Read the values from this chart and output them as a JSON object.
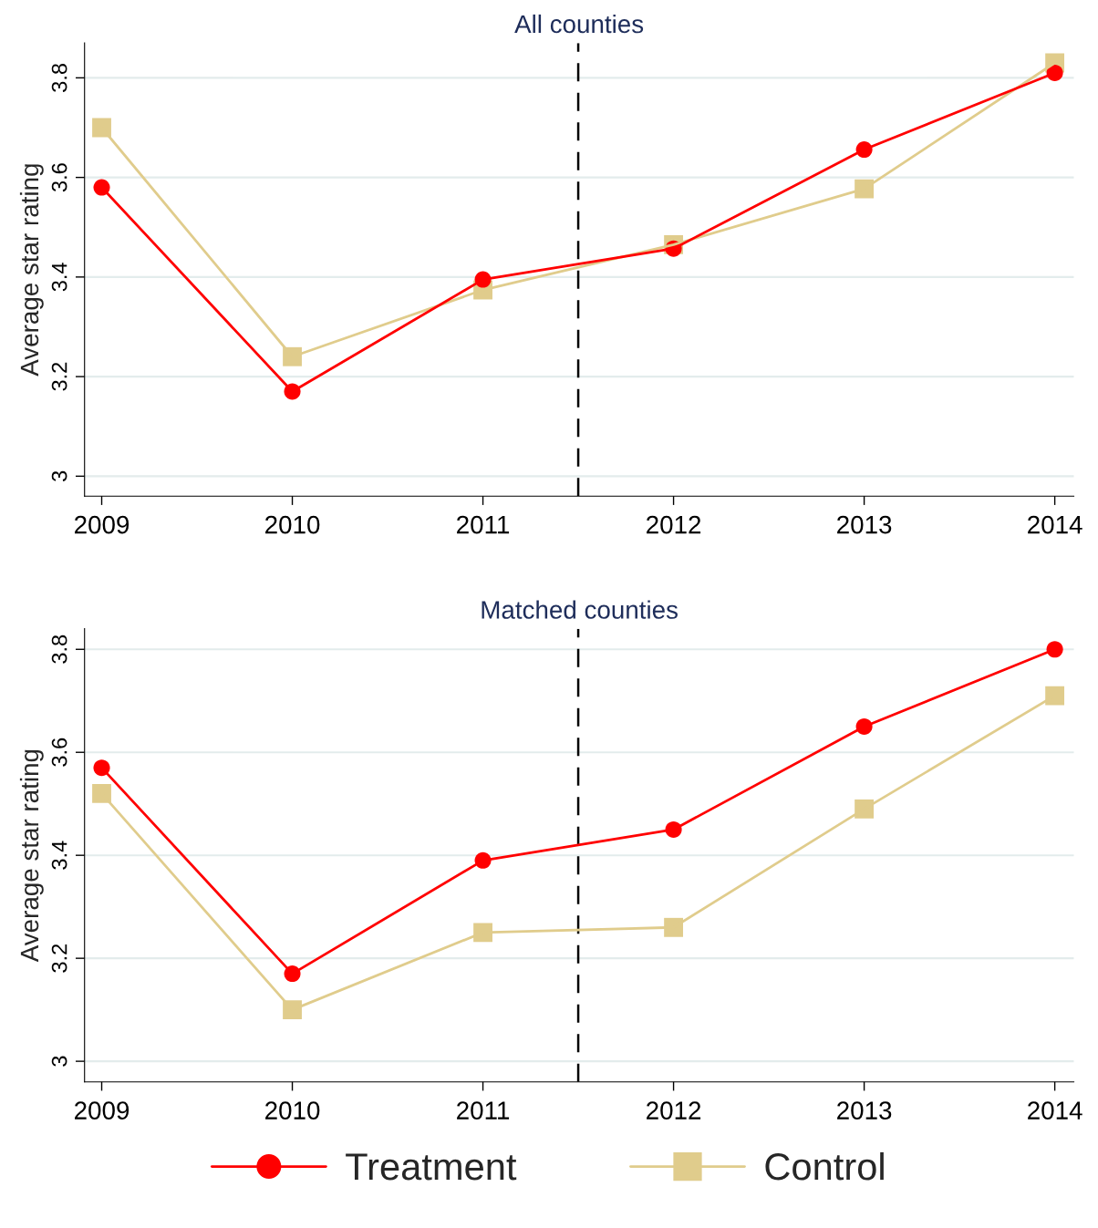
{
  "chart_data": [
    {
      "type": "line",
      "title": "All counties",
      "ylabel": "Average star rating",
      "x": [
        2009,
        2010,
        2011,
        2012,
        2013,
        2014
      ],
      "series": [
        {
          "name": "Treatment",
          "color": "#ff0000",
          "marker": "circle",
          "values": [
            3.58,
            3.17,
            3.395,
            3.457,
            3.656,
            3.81
          ]
        },
        {
          "name": "Control",
          "color": "#e0cc8c",
          "marker": "square",
          "values": [
            3.7,
            3.24,
            3.374,
            3.465,
            3.577,
            3.83
          ]
        }
      ],
      "xlim": [
        2008.91,
        2014.1
      ],
      "xticks": [
        2009,
        2010,
        2011,
        2012,
        2013,
        2014
      ],
      "ylim": [
        2.96,
        3.87
      ],
      "yticks": [
        3,
        3.2,
        3.4,
        3.6,
        3.8
      ],
      "grid": "y",
      "legend": "bottom",
      "ref_lines": [
        {
          "axis": "x",
          "value": 2011.5,
          "color": "#000000",
          "line_style": "dashed"
        }
      ]
    },
    {
      "type": "line",
      "title": "Matched counties",
      "ylabel": "Average star rating",
      "x": [
        2009,
        2010,
        2011,
        2012,
        2013,
        2014
      ],
      "series": [
        {
          "color": "#ff0000",
          "marker": "circle",
          "values": [
            3.57,
            3.17,
            3.39,
            3.45,
            3.65,
            3.8
          ]
        },
        {
          "color": "#e0cc8c",
          "marker": "square",
          "values": [
            3.52,
            3.1,
            3.25,
            3.26,
            3.49,
            3.71
          ]
        }
      ],
      "xlim": [
        2008.91,
        2014.1
      ],
      "xticks": [
        2009,
        2010,
        2011,
        2012,
        2013,
        2014
      ],
      "ylim": [
        2.96,
        3.84
      ],
      "yticks": [
        3,
        3.2,
        3.4,
        3.6,
        3.8
      ],
      "grid": "y",
      "ref_lines": [
        {
          "axis": "x",
          "value": 2011.5,
          "color": "#000000",
          "line_style": "dashed"
        }
      ]
    }
  ]
}
